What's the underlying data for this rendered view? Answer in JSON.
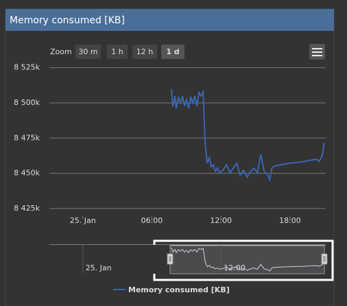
{
  "chart_data": {
    "type": "line",
    "title": "Memory consumed [KB]",
    "range_selector": {
      "label": "Zoom",
      "buttons": [
        "30 m",
        "1 h",
        "12 h",
        "1 d"
      ],
      "selected": 3
    },
    "series": [
      {
        "name": "Memory consumed [KB]",
        "color": "#3a66b0",
        "x": [
          7.7,
          7.82,
          8.0,
          8.12,
          8.3,
          8.48,
          8.66,
          8.84,
          9.01,
          9.19,
          9.37,
          9.55,
          9.73,
          9.91,
          10.09,
          10.27,
          10.45,
          10.63,
          10.81,
          10.99,
          11.16,
          11.34,
          11.52,
          11.7,
          11.88,
          12.18,
          12.48,
          12.78,
          13.07,
          13.37,
          13.67,
          13.97,
          14.27,
          14.57,
          14.87,
          15.16,
          15.46,
          15.76,
          16.06,
          16.24,
          16.42,
          16.66,
          17.25,
          17.85,
          19.04,
          20.24,
          20.54,
          20.84,
          20.96
        ],
        "values": [
          8509700,
          8497600,
          8504900,
          8496100,
          8503900,
          8500000,
          8504900,
          8497600,
          8502400,
          8496100,
          8503900,
          8500000,
          8504900,
          8497600,
          8507300,
          8504900,
          8507800,
          8470800,
          8457100,
          8461000,
          8454700,
          8456100,
          8451300,
          8453700,
          8450300,
          8452200,
          8456100,
          8450300,
          8453700,
          8457100,
          8448800,
          8452200,
          8447400,
          8451300,
          8453700,
          8450300,
          8463500,
          8451300,
          8448800,
          8445400,
          8453700,
          8455200,
          8456100,
          8457100,
          8458100,
          8460000,
          8458600,
          8463500,
          8471700
        ]
      }
    ],
    "xlim": [
      -2.9,
      21.1
    ],
    "xticks": [
      {
        "value": 0,
        "label": "25. Jan"
      },
      {
        "value": 6,
        "label": "06:00"
      },
      {
        "value": 12,
        "label": "12:00"
      },
      {
        "value": 18,
        "label": "18:00"
      }
    ],
    "ylim": [
      8420000,
      8530000
    ],
    "yticks": [
      {
        "value": 8425000,
        "label": "8 425k"
      },
      {
        "value": 8450000,
        "label": "8 450k"
      },
      {
        "value": 8475000,
        "label": "8 475k"
      },
      {
        "value": 8500000,
        "label": "8 500k"
      },
      {
        "value": 8525000,
        "label": "8 525k"
      }
    ],
    "grid": true,
    "navigator_ticks": [
      0,
      2
    ]
  }
}
